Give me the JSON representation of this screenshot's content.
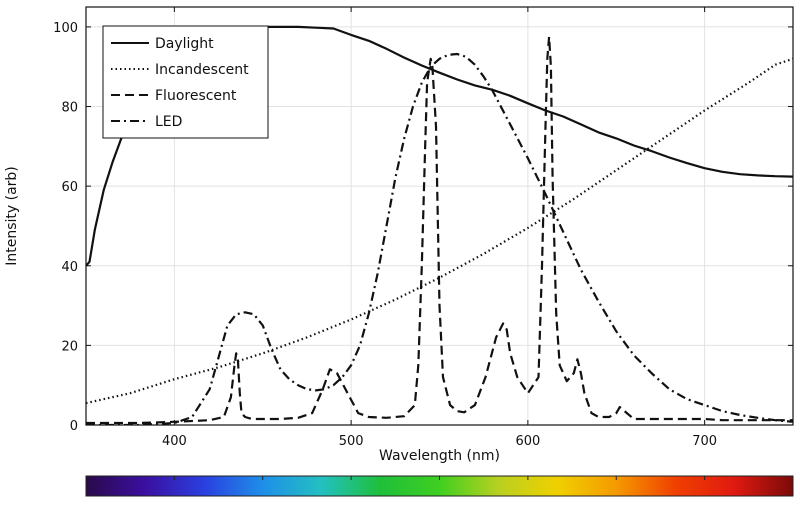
{
  "chart_data": {
    "type": "line",
    "xlabel": "Wavelength (nm)",
    "ylabel": "Intensity (arb)",
    "xlim": [
      350,
      750
    ],
    "ylim": [
      0,
      105
    ],
    "x_ticks": [
      400,
      500,
      600,
      700
    ],
    "y_ticks": [
      0,
      20,
      40,
      60,
      80,
      100
    ],
    "grid": true,
    "legend_position": "top-left",
    "colorbar": {
      "range": [
        350,
        750
      ],
      "stops": [
        "#2a0a4a",
        "#3b0fa0",
        "#2a3fe0",
        "#1f8fe8",
        "#23c0c0",
        "#1fbf3a",
        "#3fcf20",
        "#b8d020",
        "#f0d000",
        "#f59a00",
        "#f04000",
        "#e01a10",
        "#7a0a0a"
      ]
    },
    "series": [
      {
        "name": "Daylight",
        "dash": "solid",
        "x": [
          350,
          352,
          355,
          360,
          365,
          370,
          380,
          390,
          400,
          410,
          420,
          430,
          440,
          450,
          460,
          470,
          480,
          490,
          500,
          510,
          520,
          530,
          540,
          550,
          560,
          570,
          580,
          590,
          600,
          610,
          620,
          630,
          640,
          650,
          660,
          670,
          680,
          690,
          700,
          710,
          720,
          730,
          740,
          750
        ],
        "y": [
          40,
          41,
          49,
          59,
          66,
          72,
          81,
          88,
          93,
          96,
          98,
          99.3,
          99.8,
          100,
          100,
          100,
          99.8,
          99.6,
          98,
          96.5,
          94.5,
          92.3,
          90.3,
          88.5,
          86.8,
          85.3,
          84.2,
          82.7,
          80.8,
          79,
          77.5,
          75.5,
          73.5,
          72,
          70.2,
          68.8,
          67.2,
          65.8,
          64.5,
          63.6,
          63,
          62.7,
          62.5,
          62.4
        ]
      },
      {
        "name": "Incandescent",
        "dash": "dotted",
        "x": [
          350,
          375,
          400,
          425,
          450,
          475,
          500,
          525,
          550,
          575,
          600,
          625,
          650,
          675,
          700,
          725,
          740,
          750
        ],
        "y": [
          5.5,
          8,
          11.5,
          14.5,
          18,
          22,
          26.5,
          31.5,
          37,
          43,
          49.5,
          56.5,
          64,
          71.5,
          79,
          86,
          90.5,
          92
        ]
      },
      {
        "name": "Fluorescent",
        "dash": "dashed",
        "x": [
          350,
          380,
          400,
          420,
          428,
          432,
          434,
          435,
          436,
          437,
          438,
          440,
          444,
          450,
          460,
          470,
          478,
          484,
          488,
          492,
          498,
          504,
          510,
          520,
          530,
          536,
          538,
          540,
          542,
          543,
          545,
          546,
          548,
          550,
          552,
          556,
          560,
          564,
          570,
          576,
          582,
          586,
          588,
          590,
          594,
          600,
          606,
          608,
          610,
          611,
          612,
          613,
          614,
          616,
          618,
          622,
          626,
          628,
          630,
          632,
          636,
          640,
          646,
          650,
          652,
          656,
          660,
          670,
          680,
          690,
          700,
          710,
          720,
          730,
          740,
          750
        ],
        "y": [
          0.5,
          0.5,
          0.8,
          1.2,
          2,
          7,
          15,
          18,
          16,
          8,
          3,
          2,
          1.5,
          1.5,
          1.5,
          1.8,
          3,
          9,
          14,
          13,
          8,
          3,
          2,
          1.8,
          2.2,
          5,
          15,
          40,
          72,
          86,
          92,
          90,
          75,
          30,
          12,
          5,
          3.5,
          3.2,
          5,
          12,
          22,
          25.5,
          24,
          18,
          12,
          8,
          12,
          40,
          75,
          92,
          97.5,
          90,
          62,
          28,
          15,
          11,
          13,
          16.5,
          13,
          8,
          3,
          2,
          2,
          3,
          4.5,
          3,
          1.5,
          1.5,
          1.5,
          1.5,
          1.5,
          1.2,
          1.2,
          1.2,
          1.2,
          1.2
        ]
      },
      {
        "name": "LED",
        "dash": "dashdot",
        "x": [
          350,
          380,
          400,
          410,
          420,
          425,
          430,
          435,
          440,
          445,
          450,
          455,
          460,
          465,
          470,
          475,
          480,
          485,
          490,
          495,
          500,
          505,
          510,
          515,
          520,
          525,
          530,
          535,
          540,
          545,
          550,
          555,
          560,
          565,
          570,
          575,
          580,
          590,
          600,
          610,
          620,
          630,
          640,
          650,
          660,
          670,
          680,
          690,
          700,
          710,
          720,
          730,
          740,
          750
        ],
        "y": [
          0,
          0,
          0.5,
          2,
          9,
          17,
          25,
          27.8,
          28.3,
          27.8,
          25,
          19,
          14,
          11.5,
          10,
          9,
          8.7,
          9,
          10,
          12,
          15,
          20,
          28,
          38,
          50,
          62,
          72,
          80,
          86,
          90,
          92,
          93,
          93.2,
          92.5,
          90.5,
          87.5,
          84,
          75.5,
          67,
          58,
          48.5,
          39,
          31,
          23.5,
          17.5,
          13,
          9,
          6.5,
          5,
          3.5,
          2.5,
          1.8,
          1.2,
          0.8
        ]
      }
    ]
  }
}
